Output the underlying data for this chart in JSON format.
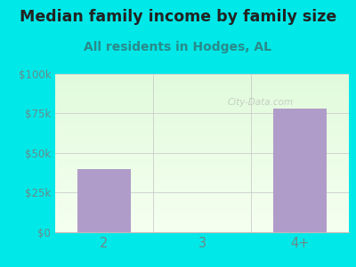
{
  "title": "Median family income by family size",
  "subtitle": "All residents in Hodges, AL",
  "categories": [
    "2",
    "3",
    "4+"
  ],
  "values": [
    40000,
    0,
    78000
  ],
  "bar_color": "#b09cc8",
  "ylim": [
    0,
    100000
  ],
  "yticks": [
    0,
    25000,
    50000,
    75000,
    100000
  ],
  "ytick_labels": [
    "$0",
    "$25k",
    "$50k",
    "$75k",
    "$100k"
  ],
  "bg_color": "#00e8e8",
  "title_color": "#222222",
  "subtitle_color": "#2a8a8a",
  "axis_label_color": "#6a8a8a",
  "watermark": "City-Data.com",
  "title_fontsize": 12.5,
  "subtitle_fontsize": 10
}
